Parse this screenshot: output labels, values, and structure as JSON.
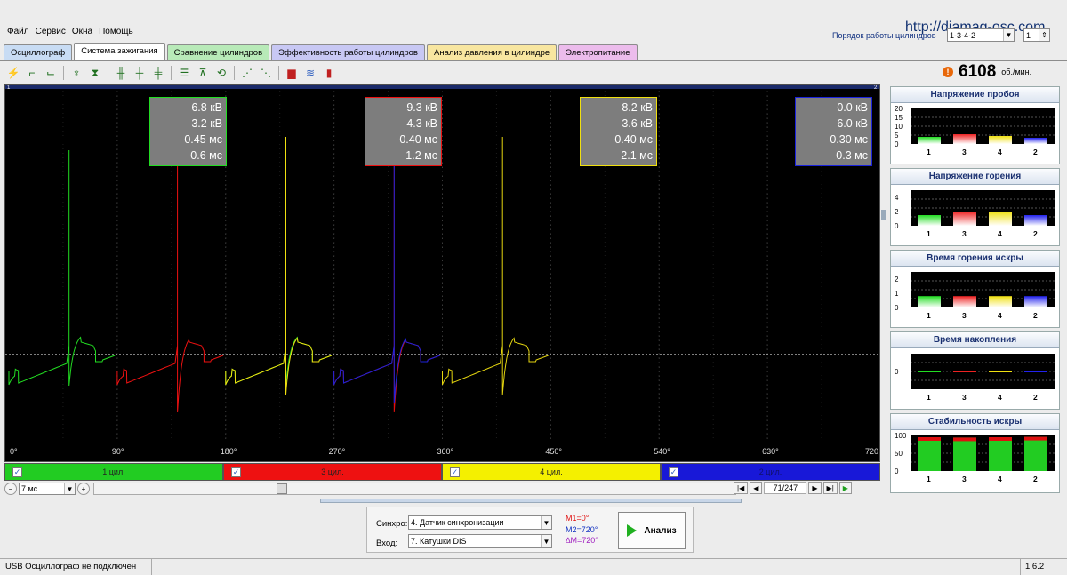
{
  "app": {
    "url": "http://diamag-osc.com"
  },
  "menu": [
    "Файл",
    "Сервис",
    "Окна",
    "Помощь"
  ],
  "firing_order": {
    "label": "Порядок работы цилиндров",
    "value": "1-3-4-2",
    "spin_value": "1"
  },
  "tabs": [
    {
      "label": "Осциллограф",
      "color": "#c8dcf4",
      "active": false
    },
    {
      "label": "Система зажигания",
      "color": "#ffffff",
      "active": true
    },
    {
      "label": "Сравнение цилиндров",
      "color": "#b8eab8",
      "active": false
    },
    {
      "label": "Эффективность работы цилиндров",
      "color": "#c8c8f4",
      "active": false
    },
    {
      "label": "Анализ давления в цилиндре",
      "color": "#f8e6a0",
      "active": false
    },
    {
      "label": "Электропитание",
      "color": "#ecbcec",
      "active": false
    }
  ],
  "toolbar_icons": [
    "spark-wave-icon",
    "rising-edge-icon",
    "falling-edge-icon",
    "probe-icon",
    "counter-icon",
    "multi-wave-icon",
    "cursor-pair-icon",
    "cursor-split-icon",
    "list-icon",
    "trigger-icon",
    "loop-icon",
    "zoom-wave-icon",
    "zoom-wave-alt-icon",
    "bar-red-icon",
    "waves-icon",
    "bar-chart-icon"
  ],
  "rpm": {
    "value": "6108",
    "unit": "об./мин.",
    "warning": "!"
  },
  "scope": {
    "x_ticks": [
      "0°",
      "90°",
      "180°",
      "270°",
      "360°",
      "450°",
      "540°",
      "630°",
      "720"
    ],
    "x_range": [
      0,
      720
    ],
    "markers": {
      "left": "1",
      "right": "2"
    },
    "cylinders": [
      {
        "color": "#22dd22",
        "values": [
          "6.8 кВ",
          "3.2 кВ",
          "0.45 мс",
          "0.6 мс"
        ]
      },
      {
        "color": "#ee1111",
        "values": [
          "9.3 кВ",
          "4.3 кВ",
          "0.40 мс",
          "1.2 мс"
        ]
      },
      {
        "color": "#f0e010",
        "values": [
          "8.2 кВ",
          "3.6 кВ",
          "0.40 мс",
          "2.1 мс"
        ]
      },
      {
        "color": "#1a22dd",
        "values": [
          "0.0 кВ",
          "6.0 кВ",
          "0.30 мс",
          "0.3 мс"
        ]
      }
    ]
  },
  "cyl_bar": [
    {
      "label": "1 цил.",
      "color": "#22cc22"
    },
    {
      "label": "3 цил.",
      "color": "#ee1111"
    },
    {
      "label": "4 цил.",
      "color": "#f4f000"
    },
    {
      "label": "2 цил.",
      "color": "#1818d8"
    }
  ],
  "time_scale": "7 мс",
  "frame": "71/247",
  "controls": {
    "sync_label": "Синхро:",
    "sync_value": "4.  Датчик синхронизации",
    "input_label": "Вход:",
    "input_value": "7.  Катушки DIS",
    "m1": "M1=0°",
    "m2": "M2=720°",
    "dm": "∆M=720°",
    "analyze_label": "Анализ"
  },
  "panels": [
    {
      "title": "Напряжение пробоя",
      "yticks": [
        "20",
        "15",
        "10",
        "5",
        "0"
      ],
      "ymax": 20,
      "values": [
        4,
        5.5,
        4.5,
        3.5
      ],
      "type": "bar"
    },
    {
      "title": "Напряжение горения",
      "yticks": [
        "4",
        "2",
        "0"
      ],
      "ymax": 5,
      "values": [
        1.5,
        2,
        2,
        1.5
      ],
      "type": "bar"
    },
    {
      "title": "Время горения искры",
      "yticks": [
        "2",
        "1",
        "0"
      ],
      "ymax": 2.5,
      "values": [
        0.8,
        0.8,
        0.8,
        0.8
      ],
      "type": "bar"
    },
    {
      "title": "Время накопления",
      "yticks": [
        "0"
      ],
      "ymax": 1,
      "values": [
        0,
        0,
        0,
        0
      ],
      "type": "line"
    },
    {
      "title": "Стабильность искры",
      "yticks": [
        "100",
        "50",
        "0"
      ],
      "ymax": 100,
      "values": [
        95,
        94,
        95,
        96
      ],
      "type": "stability"
    }
  ],
  "panel_categories": [
    "1",
    "3",
    "4",
    "2"
  ],
  "panel_colors": [
    "#22dd22",
    "#ee2222",
    "#f0e010",
    "#2222ee"
  ],
  "status": {
    "text": "USB Осциллограф не подключен",
    "version": "1.6.2"
  }
}
